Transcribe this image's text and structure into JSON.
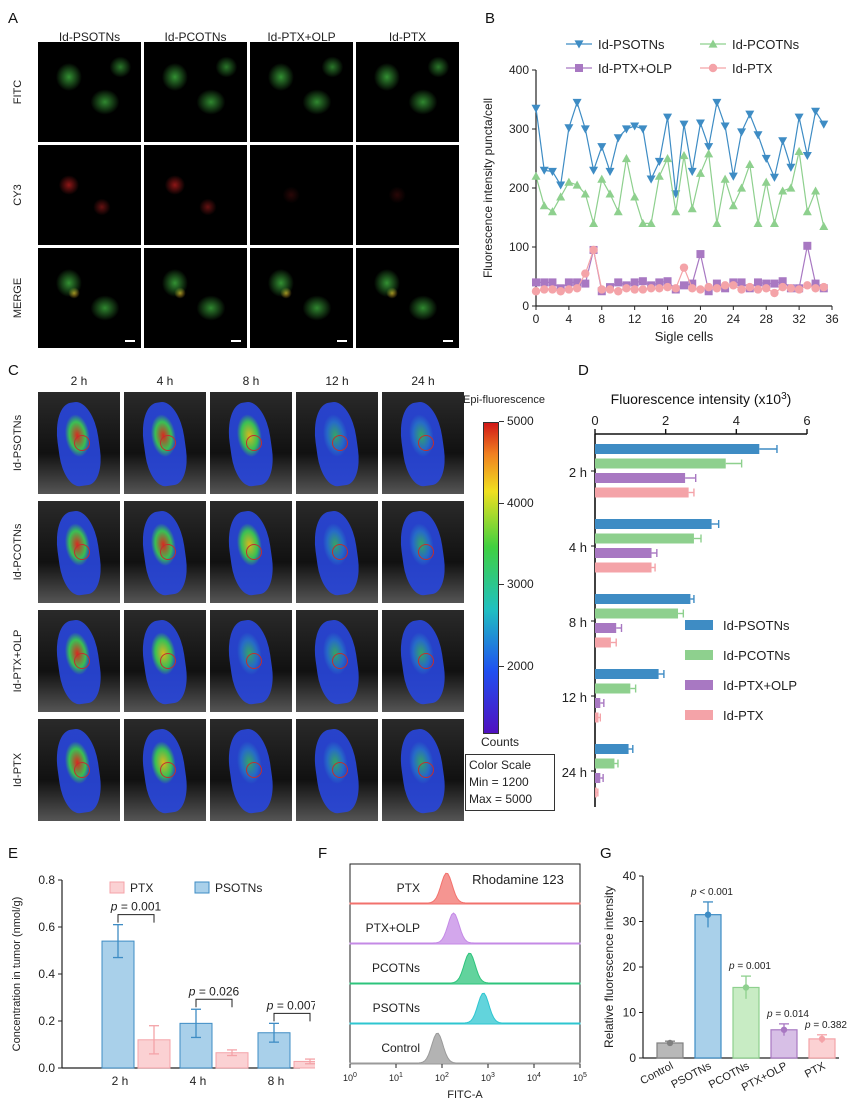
{
  "panels": {
    "A": "A",
    "B": "B",
    "C": "C",
    "D": "D",
    "E": "E",
    "F": "F",
    "G": "G"
  },
  "colors": {
    "psotns": "#3e8cc4",
    "pcotns": "#8ed08e",
    "ptxolp": "#a878c2",
    "ptx": "#f4a3a8",
    "hist_ptx": "#f2716c",
    "hist_ptxolp": "#c48ae6",
    "hist_pcotns": "#2dc47c",
    "hist_psotns": "#2ec6d0",
    "hist_control": "#9a9a9a"
  },
  "panel_a": {
    "columns": [
      "Id-PSOTNs",
      "Id-PCOTNs",
      "Id-PTX+OLP",
      "Id-PTX"
    ],
    "rows": [
      "FITC",
      "CY3",
      "MERGE"
    ]
  },
  "panel_c": {
    "times": [
      "2 h",
      "4 h",
      "8 h",
      "12 h",
      "24 h"
    ],
    "groups": [
      "Id-PSOTNs",
      "Id-PCOTNs",
      "Id-PTX+OLP",
      "Id-PTX"
    ],
    "colorbar_title": "Epi-fluorescence",
    "colorbar_ticks": [
      "5000",
      "4000",
      "3000",
      "2000"
    ],
    "colorbar_unit": "Counts",
    "scale_box": [
      "Color Scale",
      "Min = 1200",
      "Max = 5000"
    ]
  },
  "chart_data": [
    {
      "panel": "B",
      "type": "line",
      "xlabel": "Sigle cells",
      "ylabel": "Fluorescence intensity puncta/cell",
      "xlim": [
        0,
        36
      ],
      "ylim": [
        0,
        400
      ],
      "xticks": [
        "0",
        "4",
        "8",
        "12",
        "16",
        "20",
        "24",
        "28",
        "32",
        "36"
      ],
      "yticks": [
        "0",
        "100",
        "200",
        "300",
        "400"
      ],
      "x": [
        0,
        1,
        2,
        3,
        4,
        5,
        6,
        7,
        8,
        9,
        10,
        11,
        12,
        13,
        14,
        15,
        16,
        17,
        18,
        19,
        20,
        21,
        22,
        23,
        24,
        25,
        26,
        27,
        28,
        29,
        30,
        31,
        32,
        33,
        34,
        35
      ],
      "series": [
        {
          "name": "Id-PSOTNs",
          "values": [
            335,
            230,
            228,
            205,
            302,
            345,
            300,
            230,
            270,
            228,
            285,
            300,
            305,
            300,
            215,
            245,
            320,
            190,
            308,
            228,
            310,
            270,
            345,
            305,
            220,
            295,
            325,
            290,
            250,
            218,
            280,
            235,
            320,
            255,
            330,
            308
          ]
        },
        {
          "name": "Id-PCOTNs",
          "values": [
            220,
            170,
            160,
            185,
            210,
            205,
            190,
            140,
            215,
            190,
            160,
            250,
            185,
            140,
            140,
            220,
            250,
            160,
            255,
            165,
            225,
            258,
            140,
            215,
            170,
            200,
            240,
            140,
            210,
            140,
            195,
            200,
            262,
            160,
            195,
            135
          ]
        },
        {
          "name": "Id-PTX+OLP",
          "values": [
            40,
            40,
            40,
            30,
            40,
            40,
            38,
            95,
            25,
            32,
            40,
            35,
            40,
            42,
            35,
            40,
            42,
            28,
            35,
            38,
            88,
            25,
            38,
            30,
            40,
            40,
            30,
            40,
            38,
            38,
            42,
            30,
            30,
            102,
            38,
            30
          ]
        },
        {
          "name": "Id-PTX",
          "values": [
            25,
            28,
            28,
            25,
            28,
            30,
            55,
            95,
            28,
            28,
            25,
            30,
            28,
            28,
            30,
            30,
            32,
            30,
            65,
            30,
            28,
            32,
            30,
            35,
            35,
            28,
            32,
            28,
            30,
            22,
            32,
            30,
            28,
            35,
            30,
            32
          ]
        }
      ]
    },
    {
      "panel": "D",
      "type": "bar",
      "title": "Fluorescence intensity (x10",
      "title_sup": "3",
      "title_close": ")",
      "xlim": [
        0,
        6
      ],
      "xticks": [
        "0",
        "2",
        "4",
        "6"
      ],
      "categories": [
        "2 h",
        "4 h",
        "8 h",
        "12 h",
        "24 h"
      ],
      "series": [
        {
          "name": "Id-PSOTNs",
          "values": [
            4.65,
            3.3,
            2.7,
            1.8,
            0.95
          ],
          "err": [
            0.5,
            0.2,
            0.1,
            0.15,
            0.12
          ]
        },
        {
          "name": "Id-PCOTNs",
          "values": [
            3.7,
            2.8,
            2.35,
            1.0,
            0.55
          ],
          "err": [
            0.45,
            0.2,
            0.15,
            0.15,
            0.1
          ]
        },
        {
          "name": "Id-PTX+OLP",
          "values": [
            2.55,
            1.6,
            0.6,
            0.15,
            0.15
          ],
          "err": [
            0.3,
            0.15,
            0.15,
            0.1,
            0.08
          ]
        },
        {
          "name": "Id-PTX",
          "values": [
            2.65,
            1.6,
            0.45,
            0.1,
            0.05
          ],
          "err": [
            0.15,
            0.1,
            0.15,
            0.05,
            0.03
          ]
        }
      ]
    },
    {
      "panel": "E",
      "type": "bar",
      "ylabel": "Concentration in tumor (nmol/g)",
      "ylim": [
        0,
        0.8
      ],
      "yticks": [
        "0.0",
        "0.2",
        "0.4",
        "0.6",
        "0.8"
      ],
      "categories": [
        "2 h",
        "4 h",
        "8 h"
      ],
      "series": [
        {
          "name": "PSOTNs",
          "values": [
            0.54,
            0.19,
            0.15
          ],
          "err": [
            0.07,
            0.06,
            0.04
          ]
        },
        {
          "name": "PTX",
          "values": [
            0.12,
            0.065,
            0.028
          ],
          "err": [
            0.06,
            0.012,
            0.01
          ]
        }
      ],
      "annotations": [
        "p = 0.001",
        "p = 0.026",
        "p = 0.007"
      ]
    },
    {
      "panel": "F",
      "type": "area",
      "title": "Rhodamine 123",
      "xlabel": "FITC-A",
      "xticks": [
        "0",
        "1",
        "2",
        "3",
        "4",
        "5"
      ],
      "tick_base": "10",
      "tracks": [
        "PTX",
        "PTX+OLP",
        "PCOTNs",
        "PSOTNs",
        "Control"
      ],
      "peak_log10": [
        2.1,
        2.25,
        2.6,
        2.9,
        1.9
      ]
    },
    {
      "panel": "G",
      "type": "bar",
      "ylabel": "Relative fluorescence intensity",
      "ylim": [
        0,
        40
      ],
      "yticks": [
        "0",
        "10",
        "20",
        "30",
        "40"
      ],
      "categories": [
        "Control",
        "PSOTNs",
        "PCOTNs",
        "PTX+OLP",
        "PTX"
      ],
      "values": [
        3.3,
        31.5,
        15.5,
        6.2,
        4.2
      ],
      "err": [
        0.4,
        2.8,
        2.5,
        1.3,
        0.9
      ],
      "annotations": [
        "",
        "p < 0.001",
        "p = 0.001",
        "p = 0.014",
        "p = 0.382"
      ]
    }
  ]
}
